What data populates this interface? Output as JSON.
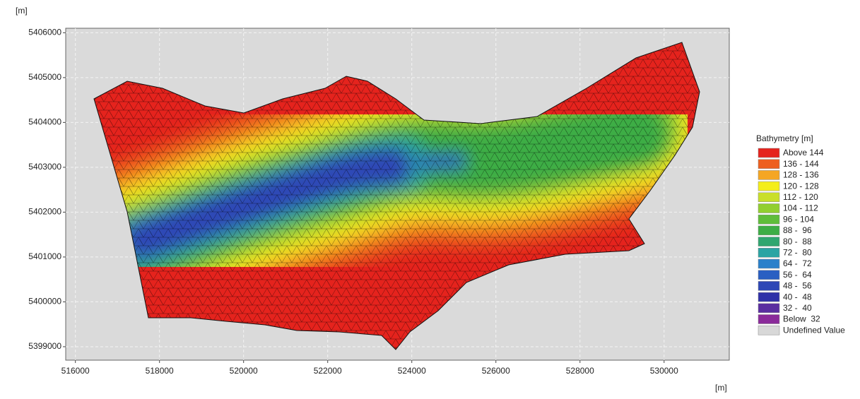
{
  "chart_data": {
    "type": "contour-map",
    "x_label": "[m]",
    "y_label": "[m]",
    "xlim": [
      515770,
      531550
    ],
    "ylim": [
      5398700,
      5406100
    ],
    "xticks": [
      516000,
      518000,
      520000,
      522000,
      524000,
      526000,
      528000,
      530000
    ],
    "yticks": [
      5399000,
      5400000,
      5401000,
      5402000,
      5403000,
      5404000,
      5405000,
      5406000
    ],
    "grid": true,
    "legend": {
      "title": "Bathymetry [m]",
      "items": [
        {
          "label": "Above 144",
          "color": "#e5231d"
        },
        {
          "label": "136 - 144",
          "color": "#ee5f1f"
        },
        {
          "label": "128 - 136",
          "color": "#f5a623"
        },
        {
          "label": "120 - 128",
          "color": "#f4ee1a"
        },
        {
          "label": "112 - 120",
          "color": "#c9df2a"
        },
        {
          "label": "104 - 112",
          "color": "#92cf30"
        },
        {
          "label": "96 - 104",
          "color": "#5fbd3a"
        },
        {
          "label": "88 -  96",
          "color": "#3dad45"
        },
        {
          "label": "80 -  88",
          "color": "#30a66f"
        },
        {
          "label": "72 -  80",
          "color": "#2ba4a3"
        },
        {
          "label": "64 -  72",
          "color": "#2a80ca"
        },
        {
          "label": "56 -  64",
          "color": "#2a5fc2"
        },
        {
          "label": "48 -  56",
          "color": "#2e47b6"
        },
        {
          "label": "40 -  48",
          "color": "#2f31a8"
        },
        {
          "label": "32 -  40",
          "color": "#5a2ea0"
        },
        {
          "label": "Below  32",
          "color": "#8a2a9a"
        },
        {
          "label": "Undefined Value",
          "color": "#d8d8d8"
        }
      ]
    }
  }
}
